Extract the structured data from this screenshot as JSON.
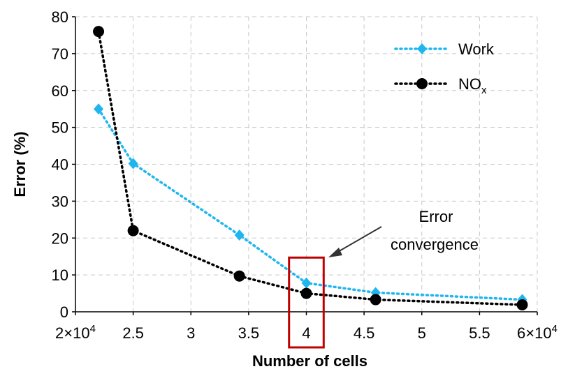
{
  "chart_data": {
    "type": "line",
    "title": "",
    "xlabel": "Number of cells",
    "ylabel": "Error (%)",
    "xlim": [
      20000,
      60000
    ],
    "ylim": [
      0,
      80
    ],
    "x_ticks": [
      {
        "value": 20000,
        "base": "2",
        "exp": "4"
      },
      {
        "value": 25000,
        "base": "2.5",
        "exp": ""
      },
      {
        "value": 30000,
        "base": "3",
        "exp": ""
      },
      {
        "value": 35000,
        "base": "3.5",
        "exp": ""
      },
      {
        "value": 40000,
        "base": "4",
        "exp": ""
      },
      {
        "value": 45000,
        "base": "4.5",
        "exp": ""
      },
      {
        "value": 50000,
        "base": "5",
        "exp": ""
      },
      {
        "value": 55000,
        "base": "5.5",
        "exp": ""
      },
      {
        "value": 60000,
        "base": "6",
        "exp": "4"
      }
    ],
    "x_tick_prefix": "×10",
    "y_ticks": [
      0,
      10,
      20,
      30,
      40,
      50,
      60,
      70,
      80
    ],
    "grid": true,
    "legend_position": "top-right",
    "series": [
      {
        "name": "Work",
        "name_sub": "",
        "color": "#1fb6f0",
        "marker": "diamond",
        "x": [
          22000,
          25000,
          34200,
          40000,
          46000,
          58700
        ],
        "y": [
          55,
          40.2,
          20.8,
          7.8,
          5.2,
          3.3
        ]
      },
      {
        "name": "NO",
        "name_sub": "x",
        "color": "#000000",
        "marker": "circle",
        "x": [
          22000,
          25000,
          34200,
          40000,
          46000,
          58700
        ],
        "y": [
          76,
          22,
          9.7,
          5.0,
          3.3,
          1.9
        ]
      }
    ],
    "annotation": {
      "lines": [
        "Error",
        "convergence"
      ],
      "box_x": [
        38500,
        41500
      ],
      "box_color": "#c00000"
    }
  }
}
